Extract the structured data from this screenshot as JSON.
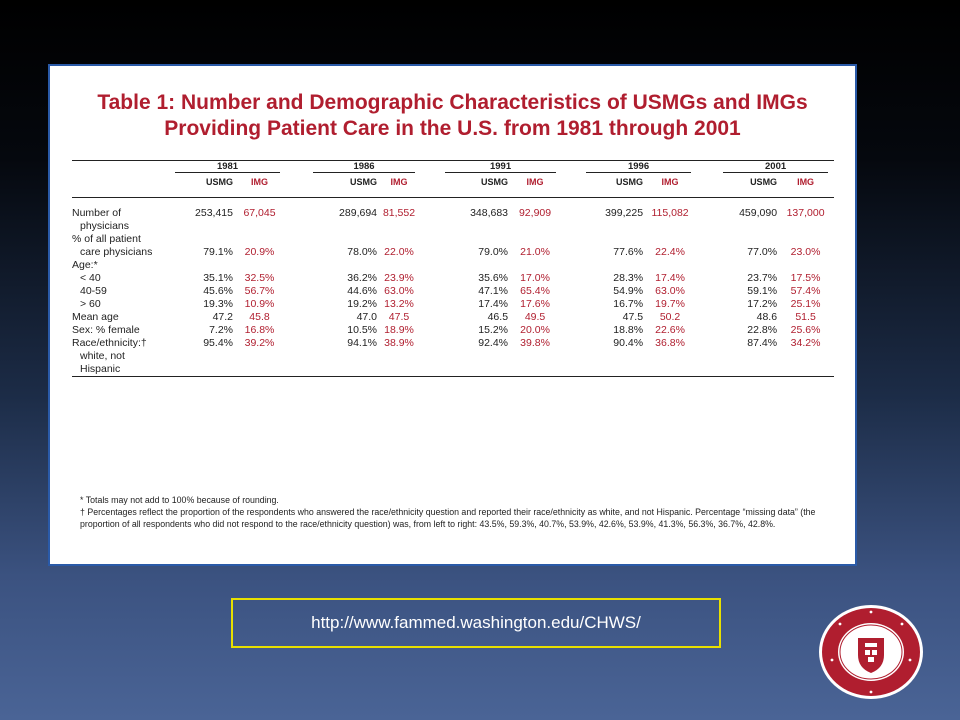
{
  "title_line1": "Table 1:  Number and Demographic Characteristics of USMGs and IMGs",
  "title_line2": "Providing Patient Care in the U.S. from 1981 through 2001",
  "years": [
    "1981",
    "1986",
    "1991",
    "1996",
    "2001"
  ],
  "col_usmg": "USMG",
  "col_img": "IMG",
  "rows": {
    "physicians": {
      "label1": "Number of",
      "label2": "physicians",
      "values": [
        "253,415",
        "67,045",
        "289,694",
        "81,552",
        "348,683",
        "92,909",
        "399,225",
        "115,082",
        "459,090",
        "137,000"
      ]
    },
    "pct": {
      "label1": "% of all patient",
      "label2": "care physicians",
      "values": [
        "79.1%",
        "20.9%",
        "78.0%",
        "22.0%",
        "79.0%",
        "21.0%",
        "77.6%",
        "22.4%",
        "77.0%",
        "23.0%"
      ]
    },
    "age": {
      "label": "Age:*",
      "lt40": {
        "label": "< 40",
        "values": [
          "35.1%",
          "32.5%",
          "36.2%",
          "23.9%",
          "35.6%",
          "17.0%",
          "28.3%",
          "17.4%",
          "23.7%",
          "17.5%"
        ]
      },
      "a4059": {
        "label": "40-59",
        "values": [
          "45.6%",
          "56.7%",
          "44.6%",
          "63.0%",
          "47.1%",
          "65.4%",
          "54.9%",
          "63.0%",
          "59.1%",
          "57.4%"
        ]
      },
      "gt60": {
        "label": "> 60",
        "values": [
          "19.3%",
          "10.9%",
          "19.2%",
          "13.2%",
          "17.4%",
          "17.6%",
          "16.7%",
          "19.7%",
          "17.2%",
          "25.1%"
        ]
      }
    },
    "mean_age": {
      "label": "Mean age",
      "values": [
        "47.2",
        "45.8",
        "47.0",
        "47.5",
        "46.5",
        "49.5",
        "47.5",
        "50.2",
        "48.6",
        "51.5"
      ]
    },
    "sex": {
      "label": "Sex: % female",
      "values": [
        "7.2%",
        "16.8%",
        "10.5%",
        "18.9%",
        "15.2%",
        "20.0%",
        "18.8%",
        "22.6%",
        "22.8%",
        "25.6%"
      ]
    },
    "race": {
      "label1": "Race/ethnicity:†",
      "label2": "white, not",
      "label3": "Hispanic",
      "values": [
        "95.4%",
        "39.2%",
        "94.1%",
        "38.9%",
        "92.4%",
        "39.8%",
        "90.4%",
        "36.8%",
        "87.4%",
        "34.2%"
      ]
    }
  },
  "footnote1": "* Totals may not add to 100% because of rounding.",
  "footnote2": "† Percentages reflect the proportion of the respondents who answered the race/ethnicity question and reported their race/ethnicity as white, and not Hispanic.  Percentage “missing data” (the proportion of all respondents who did not respond to the race/ethnicity question) was, from left to right: 43.5%, 59.3%, 40.7%, 53.9%, 42.6%, 53.9%, 41.3%, 56.3%, 36.7%, 42.8%.",
  "url": "http://www.fammed.washington.edu/CHWS/",
  "colors": {
    "title_red": "#b01e2f",
    "panel_border": "#2a5aa8",
    "url_border": "#e8e000",
    "seal_red": "#b01e2f"
  }
}
